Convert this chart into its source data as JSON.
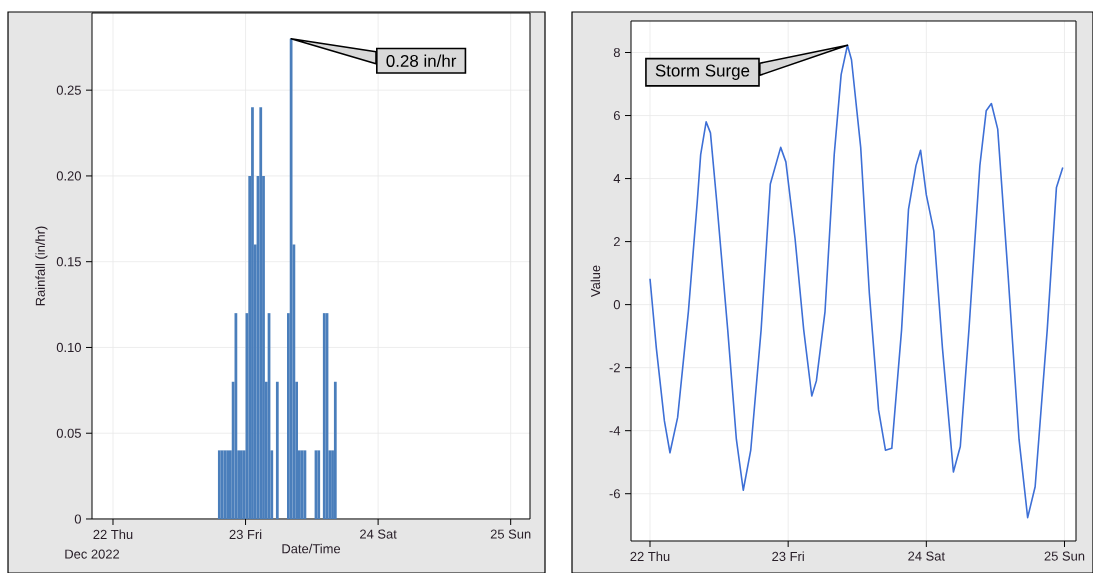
{
  "chart_data": [
    {
      "type": "bar",
      "xlabel": "Date/Time",
      "ylabel": "Rainfall (in/hr)",
      "color": "#4a7ebb",
      "grid": true,
      "x": [
        "2022-12-22T19:15",
        "2022-12-22T19:45",
        "2022-12-22T20:15",
        "2022-12-22T20:45",
        "2022-12-22T21:15",
        "2022-12-22T21:45",
        "2022-12-22T22:15",
        "2022-12-22T22:45",
        "2022-12-22T23:15",
        "2022-12-22T23:45",
        "2022-12-23T00:15",
        "2022-12-23T00:45",
        "2022-12-23T01:15",
        "2022-12-23T01:45",
        "2022-12-23T02:15",
        "2022-12-23T02:45",
        "2022-12-23T03:15",
        "2022-12-23T03:45",
        "2022-12-23T04:15",
        "2022-12-23T04:45",
        "2022-12-23T05:15",
        "2022-12-23T05:45",
        "2022-12-23T06:15",
        "2022-12-23T06:45",
        "2022-12-23T07:15",
        "2022-12-23T07:45",
        "2022-12-23T08:15",
        "2022-12-23T08:45",
        "2022-12-23T09:15",
        "2022-12-23T09:45",
        "2022-12-23T10:15",
        "2022-12-23T10:45",
        "2022-12-23T11:15",
        "2022-12-23T11:45",
        "2022-12-23T12:15",
        "2022-12-23T12:45",
        "2022-12-23T13:15",
        "2022-12-23T13:45",
        "2022-12-23T14:15",
        "2022-12-23T14:45",
        "2022-12-23T15:15",
        "2022-12-23T15:45",
        "2022-12-23T16:15"
      ],
      "values": [
        0.04,
        0.04,
        0.04,
        0.04,
        0.04,
        0.08,
        0.12,
        0.04,
        0.04,
        0.04,
        0.12,
        0.2,
        0.24,
        0.16,
        0.2,
        0.24,
        0.2,
        0.08,
        0.12,
        0.04,
        0,
        0.08,
        0,
        0,
        0,
        0.12,
        0.28,
        0.16,
        0.08,
        0.04,
        0.04,
        0.04,
        0,
        0,
        0,
        0.04,
        0.04,
        0,
        0.12,
        0.12,
        0.04,
        0.04,
        0.08
      ],
      "xlim": [
        "2022-12-21T20:12",
        "2022-12-25T03:30"
      ],
      "ylim": [
        0,
        0.295
      ],
      "xticks": [
        {
          "value": "2022-12-22",
          "label": "22 Thu"
        },
        {
          "value": "2022-12-23",
          "label": "23 Fri"
        },
        {
          "value": "2022-12-24",
          "label": "24 Sat"
        },
        {
          "value": "2022-12-25",
          "label": "25 Sun"
        }
      ],
      "yticks": [
        {
          "value": 0,
          "label": "0"
        },
        {
          "value": 0.05,
          "label": "0.05"
        },
        {
          "value": 0.1,
          "label": "0.10"
        },
        {
          "value": 0.15,
          "label": "0.15"
        },
        {
          "value": 0.2,
          "label": "0.20"
        },
        {
          "value": 0.25,
          "label": "0.25"
        }
      ],
      "annotations": [
        {
          "text": "0.28 in/hr",
          "x": "2022-12-23T08:15",
          "y": 0.28
        },
        "Dec 2022"
      ]
    },
    {
      "type": "line",
      "ylabel": "Value",
      "color": "#3d6fd6",
      "grid": true,
      "x": [
        "2022-12-22T00:00",
        "2022-12-22T01:06",
        "2022-12-22T02:30",
        "2022-12-22T03:28",
        "2022-12-22T04:48",
        "2022-12-22T06:40",
        "2022-12-22T08:12",
        "2022-12-22T08:48",
        "2022-12-22T09:45",
        "2022-12-22T10:30",
        "2022-12-22T11:36",
        "2022-12-22T13:30",
        "2022-12-22T15:00",
        "2022-12-22T16:12",
        "2022-12-22T17:30",
        "2022-12-22T19:18",
        "2022-12-22T20:54",
        "2022-12-22T21:48",
        "2022-12-22T22:42",
        "2022-12-22T23:36",
        "2022-12-23T01:12",
        "2022-12-23T02:42",
        "2022-12-23T04:06",
        "2022-12-23T04:54",
        "2022-12-23T06:24",
        "2022-12-23T08:00",
        "2022-12-23T09:12",
        "2022-12-23T10:18",
        "2022-12-23T11:00",
        "2022-12-23T12:36",
        "2022-12-23T14:06",
        "2022-12-23T15:42",
        "2022-12-23T16:54",
        "2022-12-23T18:00",
        "2022-12-23T19:42",
        "2022-12-23T20:54",
        "2022-12-23T22:12",
        "2022-12-23T23:00",
        "2022-12-24T00:00",
        "2022-12-24T01:18",
        "2022-12-24T02:48",
        "2022-12-24T04:42",
        "2022-12-24T05:54",
        "2022-12-24T07:24",
        "2022-12-24T09:18",
        "2022-12-24T10:24",
        "2022-12-24T11:18",
        "2022-12-24T12:24",
        "2022-12-24T14:12",
        "2022-12-24T16:06",
        "2022-12-24T17:36",
        "2022-12-24T18:54",
        "2022-12-24T21:00",
        "2022-12-24T22:36",
        "2022-12-24T23:24",
        "2022-12-24T23:42"
      ],
      "values": [
        0.82,
        -1.38,
        -3.69,
        -4.7,
        -3.58,
        -0.22,
        3.25,
        4.76,
        5.8,
        5.45,
        3.25,
        -0.8,
        -4.27,
        -5.89,
        -4.62,
        -0.8,
        3.83,
        4.41,
        4.99,
        4.53,
        2.09,
        -0.8,
        -2.9,
        -2.42,
        -0.22,
        4.76,
        7.3,
        8.23,
        7.77,
        4.99,
        0.36,
        -3.34,
        -4.62,
        -4.56,
        -0.8,
        3.02,
        4.41,
        4.9,
        3.48,
        2.33,
        -1.38,
        -5.31,
        -4.5,
        -0.8,
        4.41,
        6.15,
        6.38,
        5.57,
        0.94,
        -4.27,
        -6.76,
        -5.78,
        -0.8,
        3.72,
        4.18,
        4.35
      ],
      "xlim": [
        "2022-12-21T20:42",
        "2022-12-25T02:00"
      ],
      "ylim": [
        -7.5,
        9
      ],
      "xticks": [
        {
          "value": "2022-12-22",
          "label": "22 Thu"
        },
        {
          "value": "2022-12-23",
          "label": "23 Fri"
        },
        {
          "value": "2022-12-24",
          "label": "24 Sat"
        },
        {
          "value": "2022-12-25",
          "label": "25 Sun"
        }
      ],
      "yticks": [
        -6,
        -4,
        -2,
        0,
        2,
        4,
        6,
        8
      ],
      "annotations": [
        {
          "text": "Storm Surge",
          "x": "2022-12-23T10:18",
          "y": 8.23
        }
      ]
    }
  ]
}
